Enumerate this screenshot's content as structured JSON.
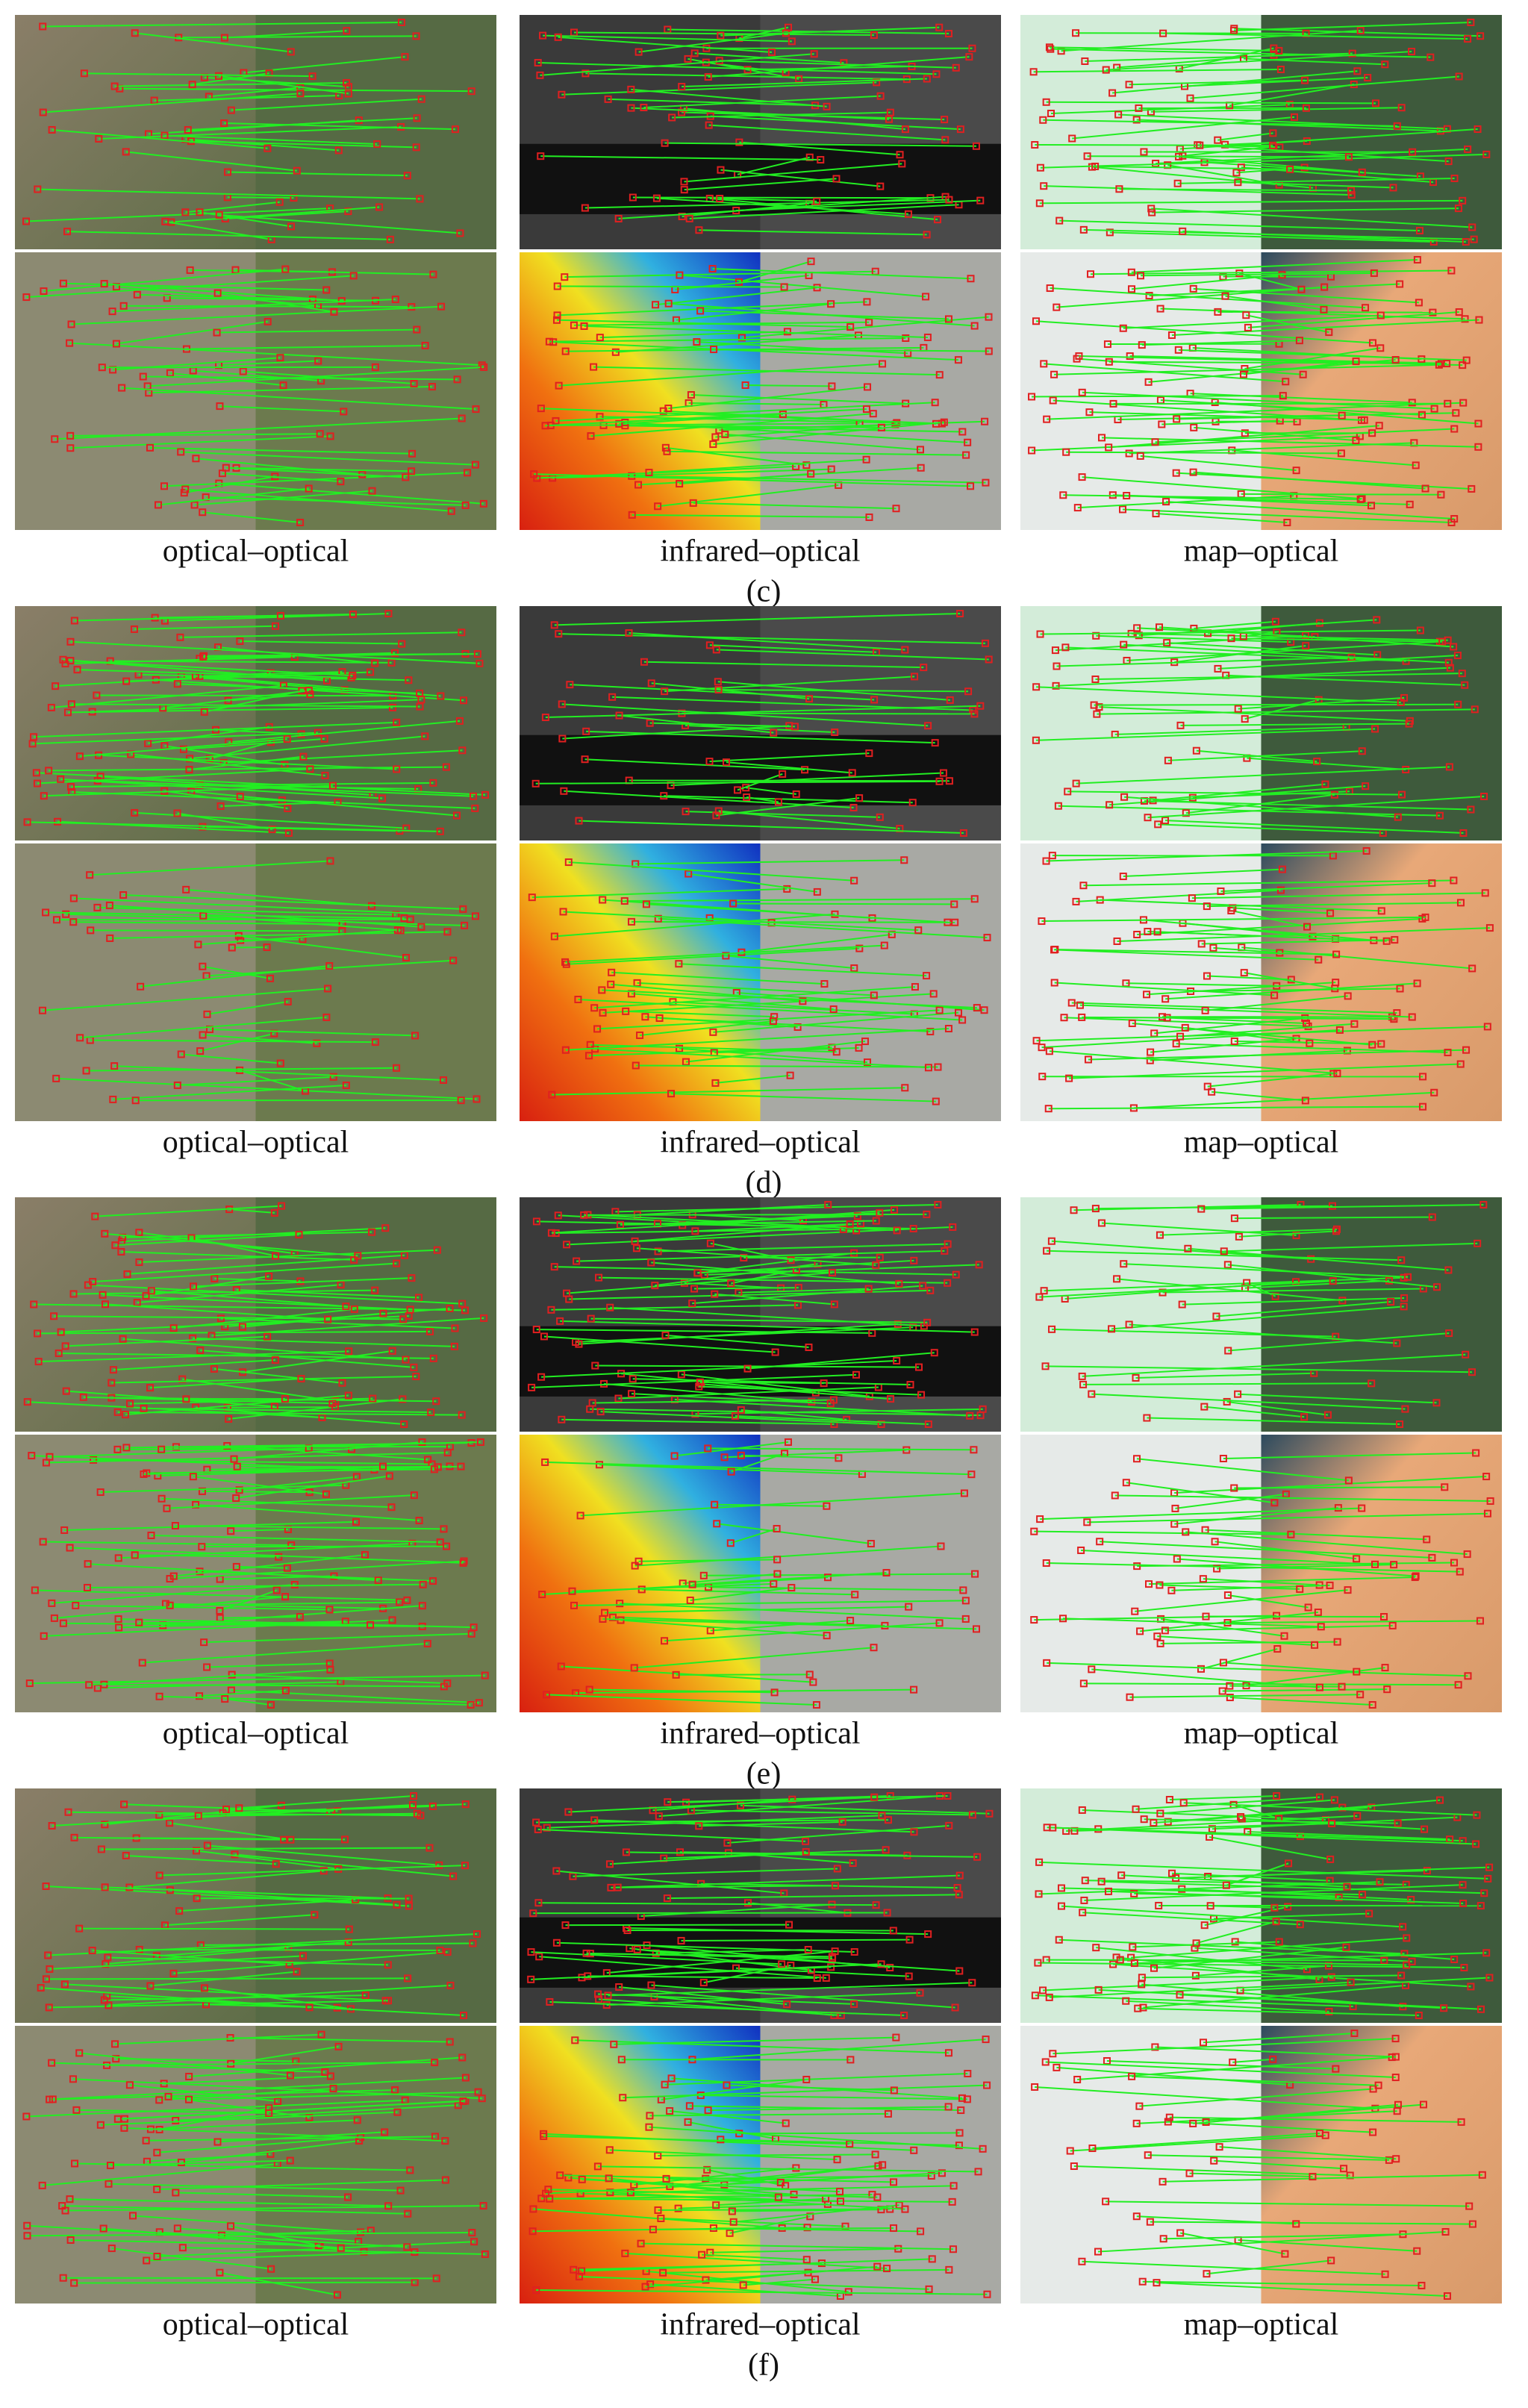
{
  "figure": {
    "rows": [
      {
        "label": "(c)",
        "captions": [
          "optical–optical",
          "infrared–optical",
          "map–optical"
        ]
      },
      {
        "label": "(d)",
        "captions": [
          "optical–optical",
          "infrared–optical",
          "map–optical"
        ]
      },
      {
        "label": "(e)",
        "captions": [
          "optical–optical",
          "infrared–optical",
          "map–optical"
        ]
      },
      {
        "label": "(f)",
        "captions": [
          "optical–optical",
          "infrared–optical",
          "map–optical"
        ]
      }
    ]
  }
}
